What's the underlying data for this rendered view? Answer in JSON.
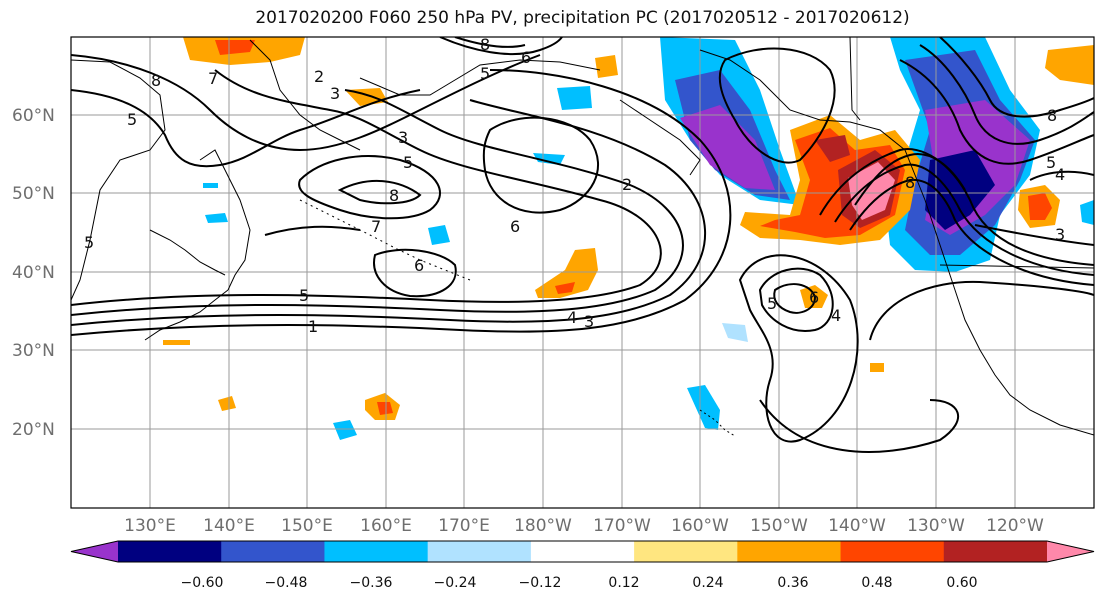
{
  "title": "2017020200 F060 250 hPa PV, precipitation PC (2017020512 - 2017020612)",
  "lat_labels": [
    "60°N",
    "50°N",
    "40°N",
    "30°N",
    "20°N"
  ],
  "lon_labels": [
    "130°E",
    "140°E",
    "150°E",
    "160°E",
    "170°E",
    "180°W",
    "170°W",
    "160°W",
    "150°W",
    "140°W",
    "130°W",
    "120°W"
  ],
  "colorbar": {
    "ticks": [
      "−0.60",
      "−0.48",
      "−0.36",
      "−0.24",
      "−0.12",
      "0.12",
      "0.24",
      "0.36",
      "0.48",
      "0.60"
    ],
    "colors": [
      "#9933cc",
      "#000080",
      "#3355cc",
      "#00bfff",
      "#b0e2ff",
      "#ffffff",
      "#ffe680",
      "#ffa500",
      "#ff4500",
      "#b22222",
      "#ff88aa"
    ]
  },
  "contour_labels": [
    "8",
    "7",
    "5",
    "2",
    "3",
    "8",
    "5",
    "6",
    "3",
    "5",
    "8",
    "7",
    "6",
    "6",
    "5",
    "1",
    "4",
    "3",
    "2",
    "5",
    "6",
    "4",
    "8",
    "5",
    "4",
    "3",
    "8",
    "5"
  ]
}
